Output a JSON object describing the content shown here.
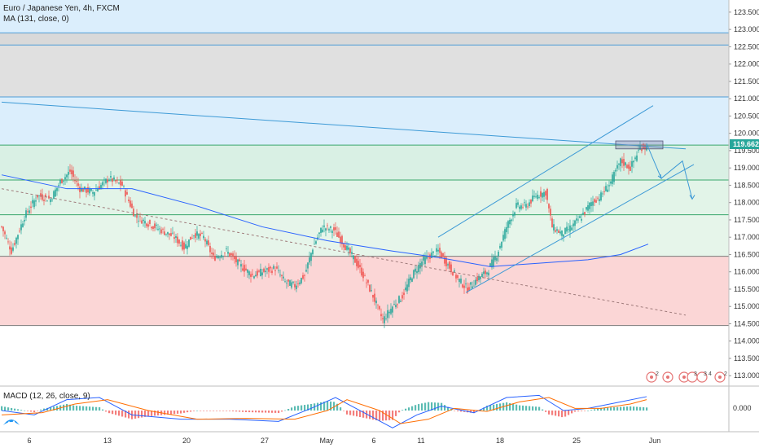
{
  "header": {
    "symbol_title": "Euro / Japanese Yen, 4h, FXCM",
    "ma_legend": "MA (131, close, 0)",
    "macd_legend": "MACD (12, 26, close, 9)"
  },
  "price_tag": {
    "value": "119.662",
    "color": "#26a69a"
  },
  "macd_axis_label": "0.000",
  "event_labels": [
    "2",
    "3",
    "3",
    "4",
    "2"
  ],
  "colors": {
    "up": "#26a69a",
    "down": "#ef5350",
    "ma": "#2962ff",
    "trend": "#3d9ad6"
  },
  "chart_data": {
    "type": "candlestick",
    "y_range": [
      112.7,
      123.85
    ],
    "y_ticks": [
      "123.500",
      "123.000",
      "122.500",
      "122.000",
      "121.500",
      "121.000",
      "120.500",
      "120.000",
      "119.500",
      "119.000",
      "118.500",
      "118.000",
      "117.500",
      "117.000",
      "116.500",
      "116.000",
      "115.500",
      "115.000",
      "114.500",
      "114.000",
      "113.500",
      "113.000"
    ],
    "x_ticks": [
      "6",
      "13",
      "20",
      "27",
      "May",
      "6",
      "11",
      "18",
      "25",
      "Jun"
    ],
    "zones": [
      {
        "from": 122.55,
        "to": 122.9,
        "color": "#d9d9d9"
      },
      {
        "from": 121.05,
        "to": 122.55,
        "color": "#e0e0e0"
      },
      {
        "from": 119.66,
        "to": 121.05,
        "color": "#dbeefc"
      },
      {
        "from": 118.65,
        "to": 119.66,
        "color": "#d9f0e4"
      },
      {
        "from": 117.65,
        "to": 118.65,
        "color": "#e2f4e8"
      },
      {
        "from": 116.45,
        "to": 117.65,
        "color": "#e6f5ea"
      },
      {
        "from": 114.45,
        "to": 116.45,
        "color": "#fbd6d6"
      }
    ],
    "h_lines": [
      122.9,
      122.55,
      121.05,
      119.66,
      118.65,
      117.65,
      116.45,
      114.45
    ],
    "anchors": [
      [
        0,
        117.3
      ],
      [
        6,
        116.6
      ],
      [
        14,
        117.6
      ],
      [
        22,
        118.2
      ],
      [
        30,
        118.1
      ],
      [
        36,
        118.6
      ],
      [
        42,
        118.9
      ],
      [
        48,
        118.4
      ],
      [
        56,
        118.3
      ],
      [
        66,
        118.7
      ],
      [
        74,
        118.5
      ],
      [
        82,
        117.6
      ],
      [
        90,
        117.4
      ],
      [
        98,
        117.2
      ],
      [
        106,
        117.0
      ],
      [
        112,
        116.7
      ],
      [
        118,
        117.1
      ],
      [
        124,
        117.0
      ],
      [
        130,
        116.4
      ],
      [
        138,
        116.6
      ],
      [
        146,
        116.2
      ],
      [
        154,
        115.9
      ],
      [
        160,
        116.0
      ],
      [
        168,
        116.1
      ],
      [
        174,
        115.7
      ],
      [
        180,
        115.6
      ],
      [
        186,
        115.9
      ],
      [
        191,
        116.7
      ],
      [
        197,
        117.3
      ],
      [
        204,
        117.2
      ],
      [
        210,
        116.8
      ],
      [
        216,
        116.4
      ],
      [
        222,
        115.9
      ],
      [
        228,
        115.3
      ],
      [
        234,
        114.6
      ],
      [
        240,
        115.0
      ],
      [
        246,
        115.3
      ],
      [
        252,
        115.9
      ],
      [
        258,
        116.3
      ],
      [
        264,
        116.5
      ],
      [
        268,
        116.6
      ],
      [
        274,
        116.2
      ],
      [
        280,
        115.8
      ],
      [
        286,
        115.5
      ],
      [
        292,
        115.8
      ],
      [
        298,
        116.0
      ],
      [
        304,
        116.5
      ],
      [
        310,
        117.3
      ],
      [
        316,
        117.9
      ],
      [
        322,
        117.9
      ],
      [
        328,
        118.2
      ],
      [
        334,
        118.3
      ],
      [
        338,
        117.3
      ],
      [
        344,
        117.1
      ],
      [
        350,
        117.3
      ],
      [
        356,
        117.6
      ],
      [
        362,
        118.0
      ],
      [
        368,
        118.2
      ],
      [
        374,
        118.6
      ],
      [
        380,
        119.2
      ],
      [
        386,
        119.0
      ],
      [
        392,
        119.6
      ],
      [
        396,
        119.6
      ]
    ],
    "ma_line": [
      [
        0,
        118.8
      ],
      [
        40,
        118.4
      ],
      [
        80,
        118.4
      ],
      [
        120,
        117.9
      ],
      [
        160,
        117.3
      ],
      [
        200,
        116.9
      ],
      [
        240,
        116.6
      ],
      [
        270,
        116.4
      ],
      [
        300,
        116.15
      ],
      [
        330,
        116.25
      ],
      [
        360,
        116.35
      ],
      [
        380,
        116.5
      ],
      [
        397,
        116.8
      ]
    ],
    "trend_lines": [
      {
        "from": [
          0,
          120.9
        ],
        "to": [
          420,
          119.55
        ],
        "dashed": false
      },
      {
        "from": [
          0,
          118.4
        ],
        "to": [
          420,
          114.75
        ],
        "dashed": true
      },
      {
        "from": [
          268,
          117.0
        ],
        "to": [
          400,
          120.8
        ],
        "dashed": false
      },
      {
        "from": [
          285,
          115.4
        ],
        "to": [
          425,
          119.1
        ],
        "dashed": false
      }
    ],
    "highlight_box": {
      "from": [
        377,
        119.55
      ],
      "to": [
        406,
        119.78
      ]
    },
    "arrows": [
      {
        "points": [
          [
            396,
            119.7
          ],
          [
            405,
            118.7
          ],
          [
            418,
            119.2
          ],
          [
            424,
            118.1
          ]
        ]
      }
    ],
    "macd": {
      "range": [
        -0.45,
        0.45
      ],
      "macd_line": [
        [
          0,
          0.0
        ],
        [
          20,
          -0.1
        ],
        [
          40,
          0.25
        ],
        [
          60,
          0.3
        ],
        [
          80,
          -0.1
        ],
        [
          110,
          -0.2
        ],
        [
          140,
          -0.2
        ],
        [
          170,
          -0.25
        ],
        [
          190,
          0.05
        ],
        [
          205,
          0.3
        ],
        [
          225,
          -0.1
        ],
        [
          240,
          -0.4
        ],
        [
          255,
          -0.1
        ],
        [
          270,
          0.1
        ],
        [
          290,
          -0.05
        ],
        [
          310,
          0.3
        ],
        [
          330,
          0.35
        ],
        [
          345,
          0.0
        ],
        [
          360,
          0.05
        ],
        [
          380,
          0.2
        ],
        [
          396,
          0.32
        ]
      ],
      "signal_line": [
        [
          0,
          -0.1
        ],
        [
          25,
          -0.05
        ],
        [
          45,
          0.15
        ],
        [
          65,
          0.25
        ],
        [
          90,
          0.0
        ],
        [
          120,
          -0.2
        ],
        [
          150,
          -0.18
        ],
        [
          180,
          -0.2
        ],
        [
          200,
          0.0
        ],
        [
          212,
          0.25
        ],
        [
          232,
          0.0
        ],
        [
          245,
          -0.3
        ],
        [
          262,
          -0.2
        ],
        [
          278,
          0.05
        ],
        [
          298,
          -0.02
        ],
        [
          318,
          0.2
        ],
        [
          336,
          0.3
        ],
        [
          352,
          0.05
        ],
        [
          368,
          0.05
        ],
        [
          386,
          0.15
        ],
        [
          396,
          0.25
        ]
      ]
    }
  }
}
